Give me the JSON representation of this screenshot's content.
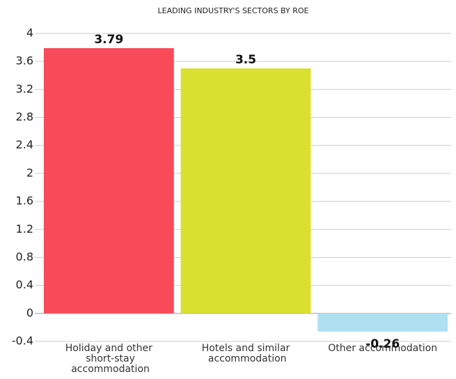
{
  "chart_data": {
    "type": "bar",
    "title": "LEADING INDUSTRY'S SECTORS BY ROE",
    "categories": [
      "Holiday and other short-stay accommodation",
      "Hotels and similar accommodation",
      "Other accommodation"
    ],
    "values": [
      3.79,
      3.5,
      -0.26
    ],
    "colors": [
      "#f94a5a",
      "#d9e030",
      "#aee0f2"
    ],
    "ylim": [
      -0.4,
      4
    ],
    "yticks": [
      -0.4,
      0,
      0.4,
      0.8,
      1.2,
      1.6,
      2,
      2.4,
      2.8,
      3.2,
      3.6,
      4
    ],
    "grid": true
  }
}
